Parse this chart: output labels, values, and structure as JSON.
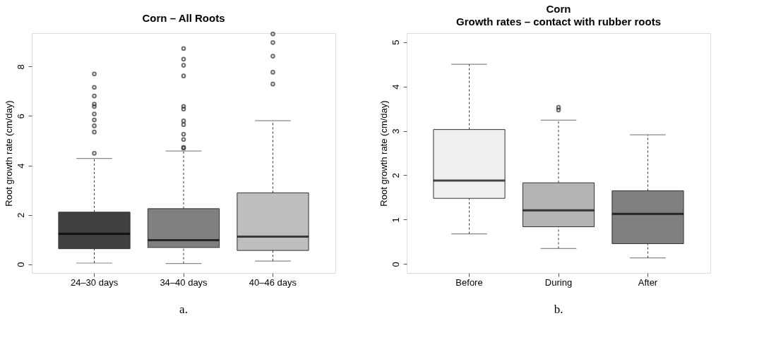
{
  "chart_data": [
    {
      "type": "box",
      "title": "Corn – All Roots",
      "ylabel": "Root growth rate (cm/day)",
      "categories": [
        "24–30 days",
        "34–40 days",
        "40–46 days"
      ],
      "colors": [
        "#404040",
        "#808080",
        "#bebebe"
      ],
      "boxes": [
        {
          "low": 0.05,
          "q1": 0.63,
          "median": 1.23,
          "q3": 2.11,
          "high": 4.28,
          "outliers": [
            4.49,
            5.35,
            5.6,
            5.84,
            6.08,
            6.38,
            6.48,
            6.81,
            7.16,
            7.7
          ]
        },
        {
          "low": 0.03,
          "q1": 0.68,
          "median": 0.98,
          "q3": 2.25,
          "high": 4.58,
          "outliers": [
            4.7,
            4.73,
            5.05,
            5.26,
            5.65,
            5.8,
            6.28,
            6.39,
            7.62,
            8.05,
            8.3,
            8.73
          ]
        },
        {
          "low": 0.13,
          "q1": 0.56,
          "median": 1.12,
          "q3": 2.89,
          "high": 5.81,
          "outliers": [
            7.29,
            7.77,
            8.42,
            8.97,
            9.32
          ]
        }
      ],
      "ylim": [
        -0.35,
        9.35
      ],
      "yticks": [
        0,
        2,
        4,
        6,
        8
      ],
      "grid": false,
      "annotations": [
        "a."
      ]
    },
    {
      "type": "box",
      "title": "Corn",
      "subtitle": "Growth rates – contact with rubber roots",
      "ylabel": "Root growth rate (cm/day)",
      "categories": [
        "Before",
        "During",
        "After"
      ],
      "colors": [
        "#f0f0f0",
        "#b3b3b3",
        "#808080"
      ],
      "boxes": [
        {
          "low": 0.68,
          "q1": 1.48,
          "median": 1.88,
          "q3": 3.03,
          "high": 4.5
        },
        {
          "low": 0.35,
          "q1": 0.84,
          "median": 1.21,
          "q3": 1.83,
          "high": 3.24,
          "outliers": [
            3.47,
            3.53
          ]
        },
        {
          "low": 0.14,
          "q1": 0.46,
          "median": 1.13,
          "q3": 1.65,
          "high": 2.91
        }
      ],
      "ylim": [
        -0.2,
        5.2
      ],
      "yticks": [
        0,
        1,
        2,
        3,
        4,
        5
      ],
      "grid": false,
      "annotations": [
        "b."
      ]
    }
  ]
}
